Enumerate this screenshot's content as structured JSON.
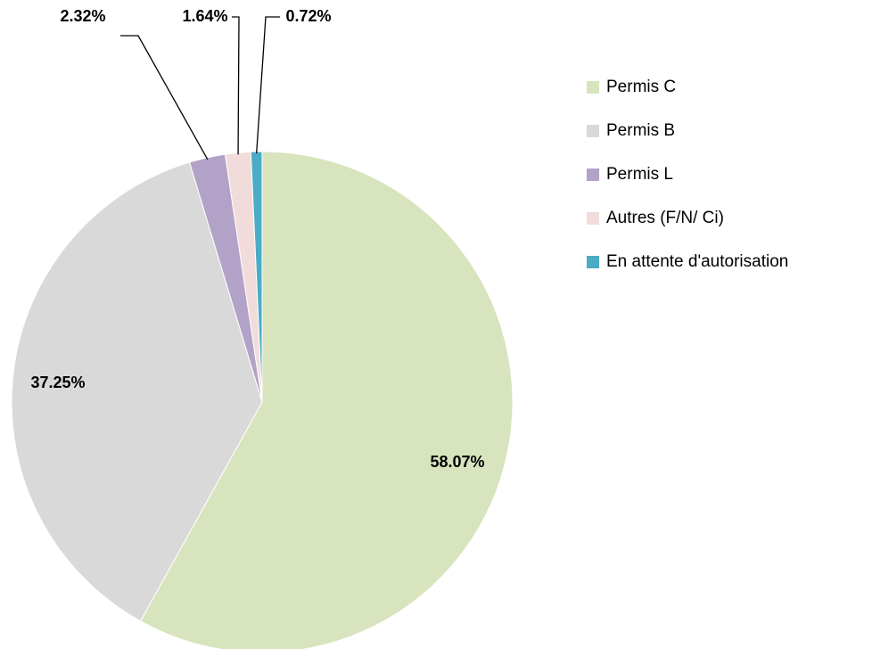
{
  "chart_data": {
    "type": "pie",
    "categories": [
      "Permis C",
      "Permis B",
      "Permis L",
      "Autres (F/N/ Ci)",
      "En attente d'autorisation"
    ],
    "values": [
      58.07,
      37.25,
      2.32,
      1.64,
      0.72
    ],
    "value_labels": [
      "58.07%",
      "37.25%",
      "2.32%",
      "1.64%",
      "0.72%"
    ],
    "colors": [
      "#d7e4bd",
      "#d9d9d9",
      "#b3a2c7",
      "#f2dcdb",
      "#4bacc6"
    ],
    "legend": "right"
  }
}
